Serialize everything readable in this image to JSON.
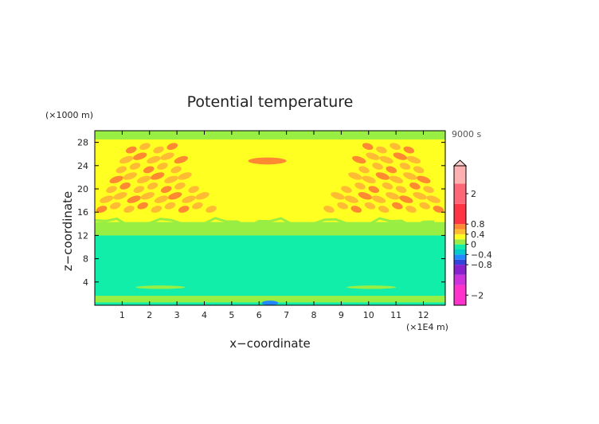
{
  "chart_data": {
    "type": "heatmap",
    "title": "Potential temperature",
    "xlabel": "x−coordinate",
    "ylabel": "z−coordinate",
    "x_unit": "(×1E4 m)",
    "y_unit": "(×1000 m)",
    "time_label": "9000 s",
    "xlim": [
      0,
      12.8
    ],
    "ylim": [
      0,
      30
    ],
    "x_ticks": [
      "1",
      "2",
      "3",
      "4",
      "5",
      "6",
      "7",
      "8",
      "9",
      "10",
      "11",
      "12"
    ],
    "y_ticks": [
      "4",
      "8",
      "12",
      "16",
      "20",
      "24",
      "28"
    ],
    "colorbar": {
      "range": [
        -2.4,
        3.1
      ],
      "labels": [
        "2",
        "0.8",
        "0.4",
        "0",
        "−0.4",
        "−0.8",
        "−2"
      ],
      "bands": [
        {
          "lo": -2.4,
          "hi": -1.6,
          "color": "#ff33cc"
        },
        {
          "lo": -1.6,
          "hi": -1.2,
          "color": "#cc33dd"
        },
        {
          "lo": -1.2,
          "hi": -0.8,
          "color": "#8822cc"
        },
        {
          "lo": -0.8,
          "hi": -0.6,
          "color": "#3344dd"
        },
        {
          "lo": -0.6,
          "hi": -0.4,
          "color": "#2288ff"
        },
        {
          "lo": -0.4,
          "hi": -0.2,
          "color": "#00cccc"
        },
        {
          "lo": -0.2,
          "hi": 0.0,
          "color": "#11eeaa"
        },
        {
          "lo": 0.0,
          "hi": 0.2,
          "color": "#99ee44"
        },
        {
          "lo": 0.2,
          "hi": 0.4,
          "color": "#ffff22"
        },
        {
          "lo": 0.4,
          "hi": 0.6,
          "color": "#ffbb33"
        },
        {
          "lo": 0.6,
          "hi": 0.8,
          "color": "#ff8833"
        },
        {
          "lo": 0.8,
          "hi": 1.6,
          "color": "#ff3344"
        },
        {
          "lo": 1.6,
          "hi": 2.4,
          "color": "#ff6677"
        },
        {
          "lo": 2.4,
          "hi": 3.1,
          "color": "#ffb0b0"
        }
      ]
    },
    "field": {
      "background": "#ffff22",
      "regions": [
        {
          "value": 0.1,
          "color": "#99ee44",
          "x": [
            0,
            12.8
          ],
          "z": [
            28.5,
            30
          ]
        },
        {
          "value": 0.1,
          "color": "#99ee44",
          "x": [
            0,
            12.8
          ],
          "z": [
            12,
            14.3
          ]
        },
        {
          "value": -0.1,
          "color": "#11eeaa",
          "x": [
            0,
            12.8
          ],
          "z": [
            1.6,
            12
          ]
        },
        {
          "value": 0.1,
          "color": "#99ee44",
          "x": [
            0,
            12.8
          ],
          "z": [
            0.5,
            1.6
          ]
        },
        {
          "value": -0.1,
          "color": "#11eeaa",
          "x": [
            0,
            12.8
          ],
          "z": [
            0,
            0.5
          ]
        }
      ],
      "blobs": [
        {
          "value": 0.7,
          "color": "#ff8833",
          "x": 6.3,
          "z": 24.8,
          "rx": 0.7,
          "rz": 0.6
        },
        {
          "value": 0.1,
          "color": "#99ee44",
          "x": 2.4,
          "z": 3.1,
          "rx": 0.9,
          "rz": 0.3
        },
        {
          "value": 0.1,
          "color": "#99ee44",
          "x": 10.1,
          "z": 3.1,
          "rx": 0.9,
          "rz": 0.3
        },
        {
          "value": -0.5,
          "color": "#2288ff",
          "x": 6.4,
          "z": 0.4,
          "rx": 0.3,
          "rz": 0.4
        }
      ],
      "wave_pattern": {
        "description_values": [
          0.5,
          0.7
        ],
        "left_x": [
          0,
          4.6
        ],
        "right_x": [
          8.3,
          12.8
        ],
        "z": [
          15.5,
          28.5
        ]
      }
    }
  }
}
